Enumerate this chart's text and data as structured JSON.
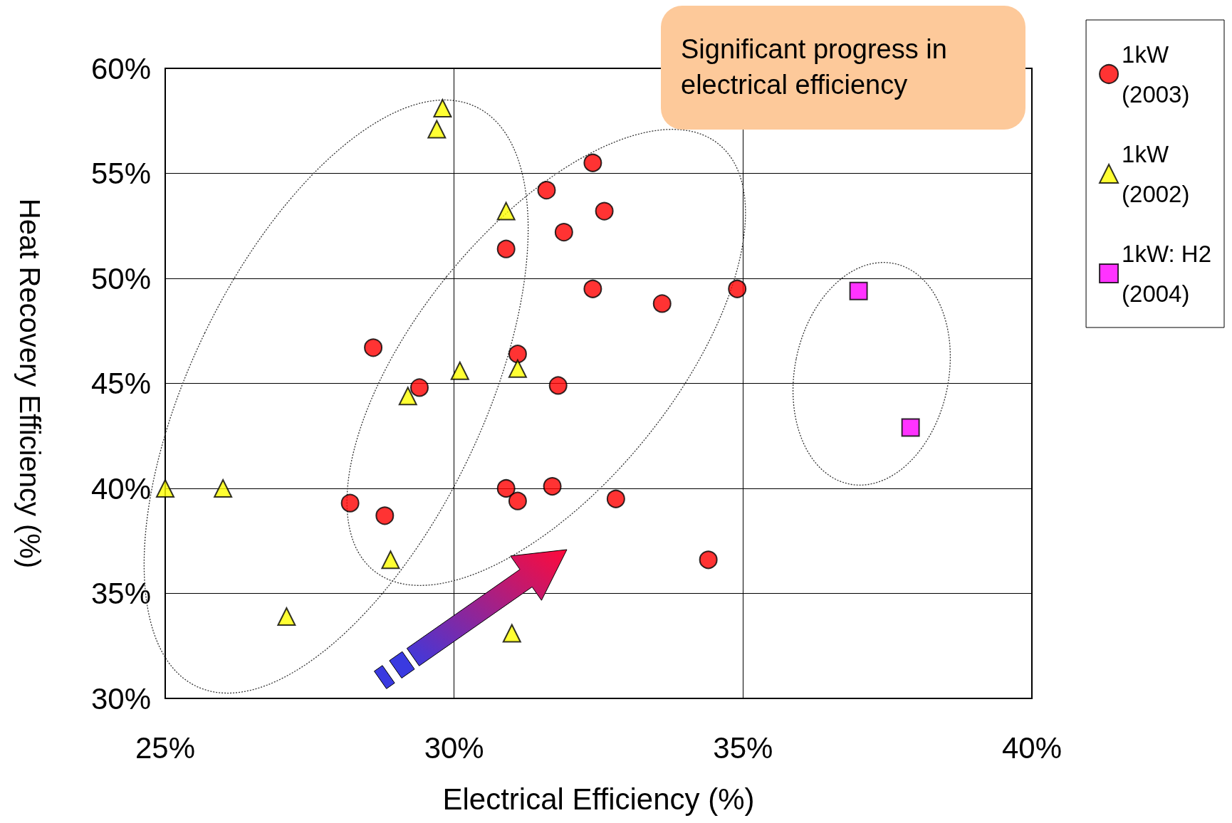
{
  "chart_data": {
    "type": "scatter",
    "xlabel": "Electrical Efficiency (%)",
    "ylabel": "Heat Recovery Efficiency (%)",
    "annotations": [
      "Significant progress in electrical efficiency"
    ],
    "xlim": [
      25,
      40
    ],
    "xticks": [
      {
        "value": 25,
        "label": "25%"
      },
      {
        "value": 30,
        "label": "30%"
      },
      {
        "value": 35,
        "label": "35%"
      },
      {
        "value": 40,
        "label": "40%"
      }
    ],
    "ylim": [
      30,
      60
    ],
    "yticks": [
      {
        "value": 30,
        "label": "30%"
      },
      {
        "value": 35,
        "label": "35%"
      },
      {
        "value": 40,
        "label": "40%"
      },
      {
        "value": 45,
        "label": "45%"
      },
      {
        "value": 50,
        "label": "50%"
      },
      {
        "value": 55,
        "label": "55%"
      },
      {
        "value": 60,
        "label": "60%"
      }
    ],
    "grid": true,
    "legend": "right",
    "series": [
      {
        "name": "1kW\n(2003)",
        "color": "#ff0000",
        "marker": "circle",
        "x": [
          32.4,
          31.6,
          32.6,
          31.9,
          30.9,
          32.4,
          34.9,
          33.6,
          28.6,
          31.1,
          29.4,
          31.8,
          30.9,
          31.1,
          31.7,
          32.8,
          28.2,
          28.8,
          34.4
        ],
        "values": [
          55.5,
          54.2,
          53.2,
          52.2,
          51.4,
          49.5,
          49.5,
          48.8,
          46.7,
          46.4,
          44.8,
          44.9,
          40.0,
          39.4,
          40.1,
          39.5,
          39.3,
          38.7,
          36.6
        ]
      },
      {
        "name": "1kW\n(2002)",
        "color": "#ffff00",
        "marker": "triangle",
        "x": [
          29.8,
          29.7,
          30.9,
          30.1,
          31.1,
          29.2,
          25.0,
          26.0,
          28.9,
          27.1,
          31.0
        ],
        "values": [
          58.1,
          57.1,
          53.2,
          45.6,
          45.7,
          44.4,
          40.0,
          40.0,
          36.6,
          33.9,
          33.1
        ]
      },
      {
        "name": "1kW: H2\n(2004)",
        "color": "#ff00ff",
        "marker": "square",
        "x": [
          37.0,
          37.9
        ],
        "values": [
          49.4,
          42.9
        ]
      }
    ]
  }
}
